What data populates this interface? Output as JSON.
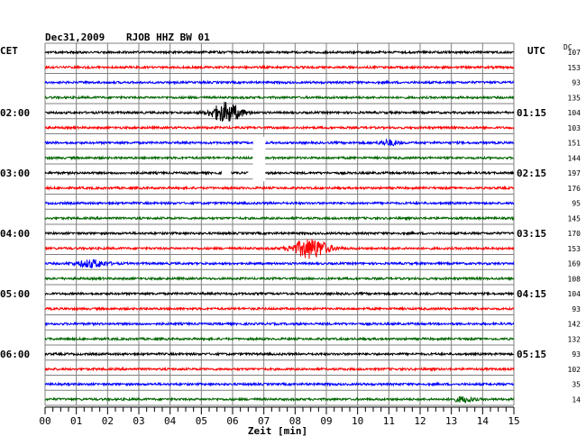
{
  "header": {
    "date": "Dec31,2009",
    "station": "RJOB HHZ BW 01",
    "left_timezone": "CET",
    "right_timezone": "UTC",
    "dc_label": "DC"
  },
  "colors": {
    "cycle": [
      "#000000",
      "#ff0000",
      "#0000ff",
      "#006400"
    ],
    "grid": "#808080",
    "gap_fill": "#ffffff"
  },
  "chart_data": {
    "type": "line",
    "title": "Dec31,2009  RJOB HHZ BW 01",
    "xlabel": "Zeit [min]",
    "x_ticks": [
      "00",
      "01",
      "02",
      "03",
      "04",
      "05",
      "06",
      "07",
      "08",
      "09",
      "10",
      "11",
      "12",
      "13",
      "14",
      "15"
    ],
    "xlim": [
      0,
      15
    ],
    "minor_ticks_per_minute": 4,
    "traces_per_hour": 4,
    "left_time_labels": [
      "02:00",
      "03:00",
      "04:00",
      "05:00",
      "06:00"
    ],
    "left_label_traces": [
      4,
      8,
      12,
      16,
      20
    ],
    "right_time_labels": [
      "01:15",
      "02:15",
      "03:15",
      "04:15",
      "05:15"
    ],
    "right_label_traces": [
      4,
      8,
      12,
      16,
      20
    ],
    "dc_offsets": [
      107,
      153,
      93,
      135,
      104,
      103,
      151,
      144,
      197,
      176,
      95,
      145,
      170,
      153,
      169,
      108,
      104,
      93,
      142,
      132,
      93,
      102,
      35,
      14
    ],
    "base_noise": 1.2,
    "events": [
      {
        "trace": 4,
        "center_min": 5.8,
        "width_min": 1.2,
        "amplitude": 11
      },
      {
        "trace": 6,
        "center_min": 11.0,
        "width_min": 0.7,
        "amplitude": 3
      },
      {
        "trace": 13,
        "center_min": 8.5,
        "width_min": 1.4,
        "amplitude": 11
      },
      {
        "trace": 14,
        "center_min": 1.5,
        "width_min": 1.2,
        "amplitude": 4
      },
      {
        "trace": 23,
        "center_min": 13.4,
        "width_min": 0.8,
        "amplitude": 3
      }
    ],
    "gaps": [
      {
        "trace": 8,
        "start_min": 5.65,
        "end_min": 5.95
      },
      {
        "trace": 8,
        "start_min": 6.5,
        "end_min": 7.05
      }
    ],
    "gap_blocks": [
      {
        "start_trace": 5.6,
        "end_trace": 8.55,
        "start_min": 6.65,
        "end_min": 7.05
      }
    ]
  }
}
